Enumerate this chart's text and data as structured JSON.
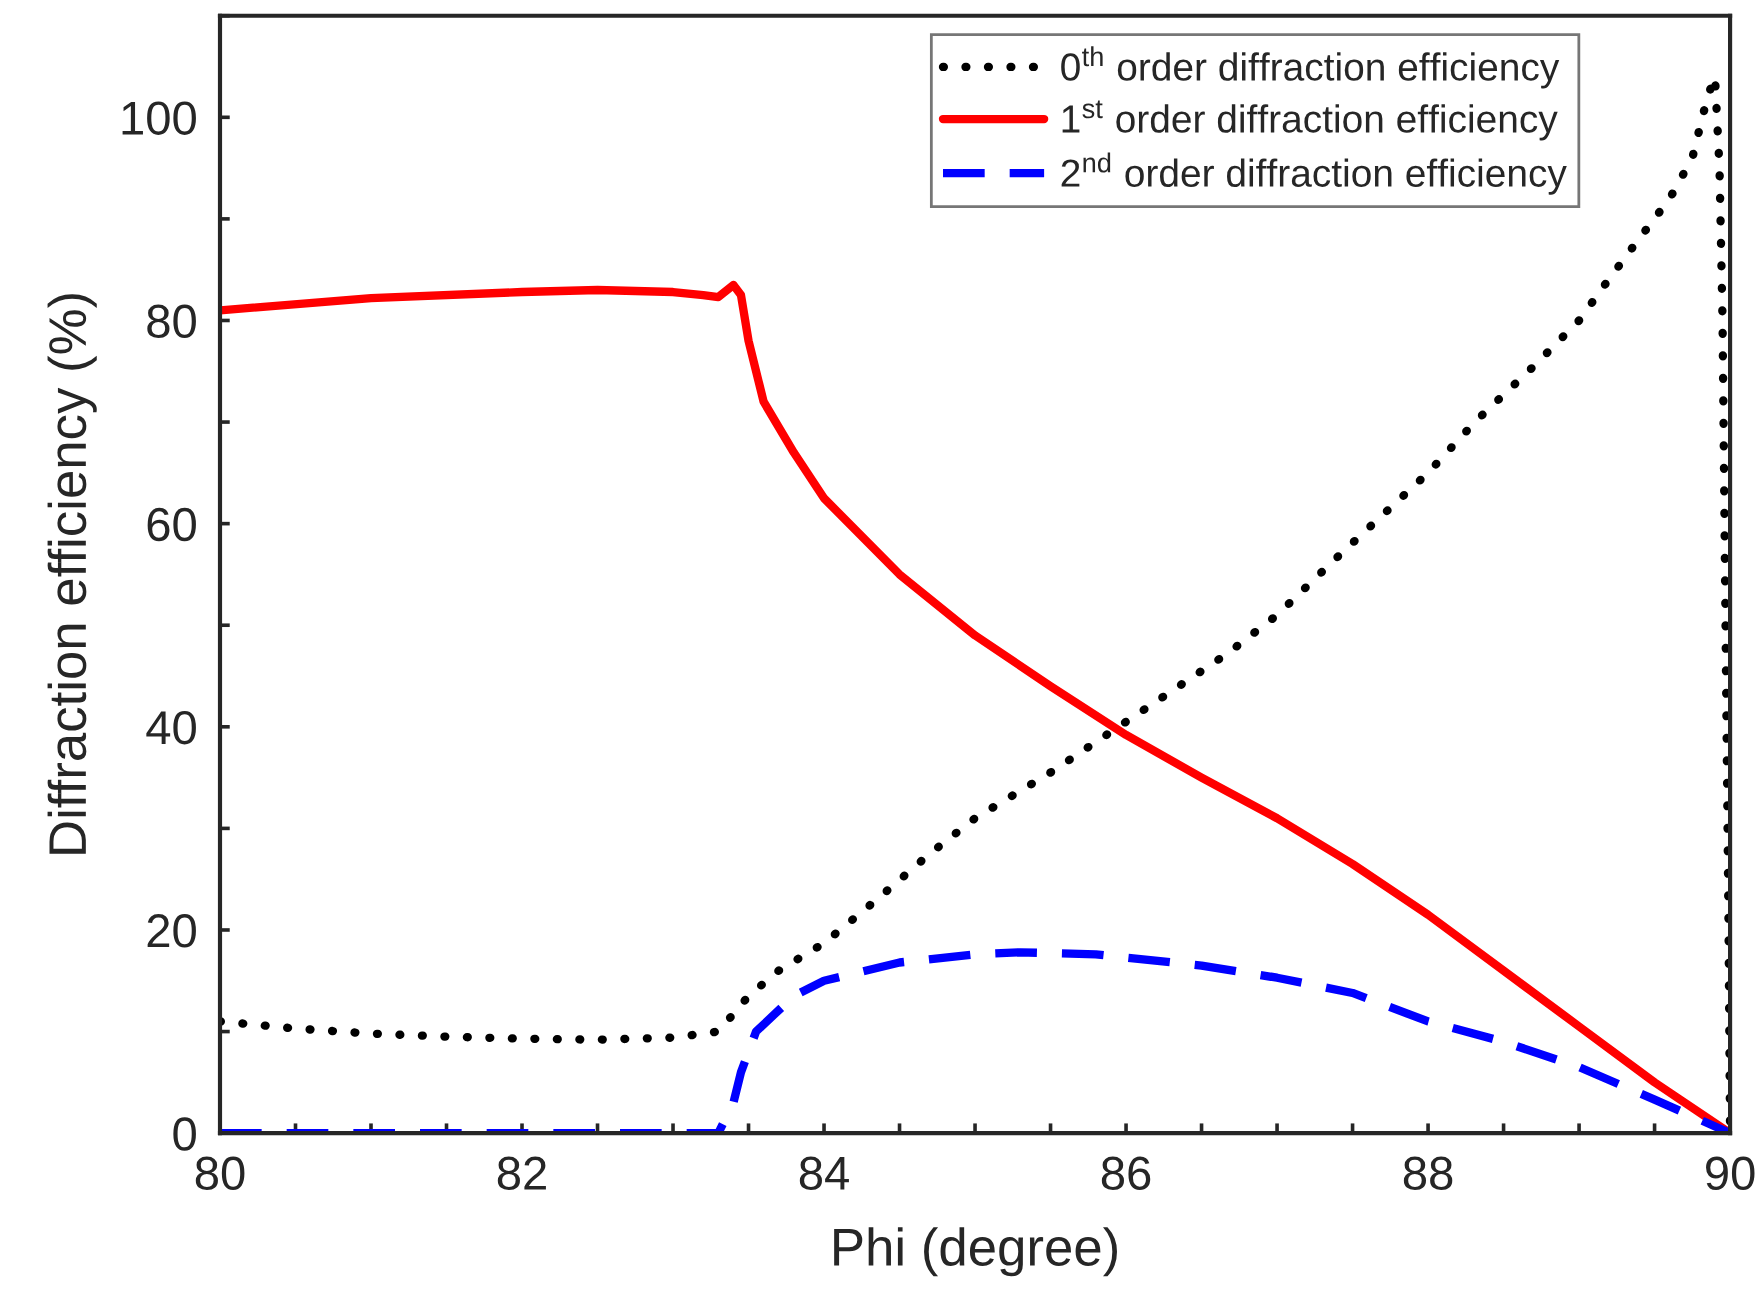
{
  "chart_data": {
    "type": "line",
    "xlabel": "Phi (degree)",
    "ylabel": "Diffraction efficiency (%)",
    "xlim": [
      80,
      90
    ],
    "ylim": [
      0,
      110
    ],
    "xticks": [
      80,
      {
        "value": 80.5,
        "label": null
      },
      {
        "value": 81,
        "label": null
      },
      {
        "value": 81.5,
        "label": null
      },
      82,
      {
        "value": 82.5,
        "label": null
      },
      {
        "value": 83,
        "label": null
      },
      {
        "value": 83.5,
        "label": null
      },
      84,
      {
        "value": 84.5,
        "label": null
      },
      {
        "value": 85,
        "label": null
      },
      {
        "value": 85.5,
        "label": null
      },
      86,
      {
        "value": 86.5,
        "label": null
      },
      {
        "value": 87,
        "label": null
      },
      {
        "value": 87.5,
        "label": null
      },
      88,
      {
        "value": 88.5,
        "label": null
      },
      {
        "value": 89,
        "label": null
      },
      {
        "value": 89.5,
        "label": null
      },
      90
    ],
    "yticks": [
      0,
      {
        "value": 10,
        "label": null
      },
      20,
      {
        "value": 30,
        "label": null
      },
      40,
      {
        "value": 50,
        "label": null
      },
      60,
      {
        "value": 70,
        "label": null
      },
      80,
      {
        "value": 90,
        "label": null
      },
      100,
      {
        "value": 110,
        "label": null
      }
    ],
    "legend": "top right",
    "grid": false,
    "series": [
      {
        "name": "0$^{th}$ order diffraction efficiency",
        "color": "#000000",
        "line_style": "dotted",
        "x": [
          80,
          80.5,
          81,
          81.5,
          82,
          82.5,
          83,
          83.3,
          83.5,
          83.7,
          84,
          84.35,
          84.7,
          85,
          85.5,
          86,
          86.67,
          87,
          87.42,
          88,
          88.31,
          88.7,
          89,
          89.17,
          89.37,
          89.6,
          89.75,
          89.85,
          89.9,
          89.93,
          89.95,
          89.97,
          89.99,
          90
        ],
        "values": [
          11,
          10.3,
          9.8,
          9.5,
          9.3,
          9.2,
          9.4,
          10,
          13.5,
          16,
          18.7,
          23,
          27.5,
          31,
          35.5,
          40.5,
          47.2,
          51,
          57,
          65,
          70,
          75.5,
          80,
          83.5,
          87.5,
          92,
          96,
          102,
          104,
          95,
          80,
          50,
          20,
          0
        ]
      },
      {
        "name": "1$^{st}$ order diffraction efficiency",
        "color": "#ff0000",
        "line_style": "solid",
        "x": [
          80,
          81,
          82,
          82.5,
          83,
          83.2,
          83.3,
          83.4,
          83.45,
          83.5,
          83.6,
          83.8,
          84,
          84.5,
          85,
          85.5,
          86,
          86.5,
          87,
          87.5,
          88,
          88.5,
          89,
          89.5,
          90
        ],
        "values": [
          81,
          82.2,
          82.8,
          83,
          82.8,
          82.5,
          82.3,
          83.5,
          82.5,
          78,
          72,
          67,
          62.5,
          55,
          49,
          44,
          39.2,
          35,
          31,
          26.5,
          21.5,
          16,
          10.5,
          5,
          0
        ]
      },
      {
        "name": "2$^{nd}$ order diffraction efficiency",
        "color": "#0000ff",
        "line_style": "dashed",
        "x": [
          80,
          81,
          82,
          83,
          83.3,
          83.4,
          83.45,
          83.55,
          83.8,
          84,
          84.5,
          85,
          85.3,
          85.8,
          86.5,
          87,
          87.5,
          88,
          88.5,
          89,
          89.5,
          90
        ],
        "values": [
          0,
          0,
          0,
          0,
          0,
          3,
          6,
          10,
          13.5,
          15,
          16.8,
          17.6,
          17.8,
          17.6,
          16.5,
          15.3,
          13.8,
          11,
          9,
          6.5,
          3.3,
          0
        ]
      }
    ]
  }
}
